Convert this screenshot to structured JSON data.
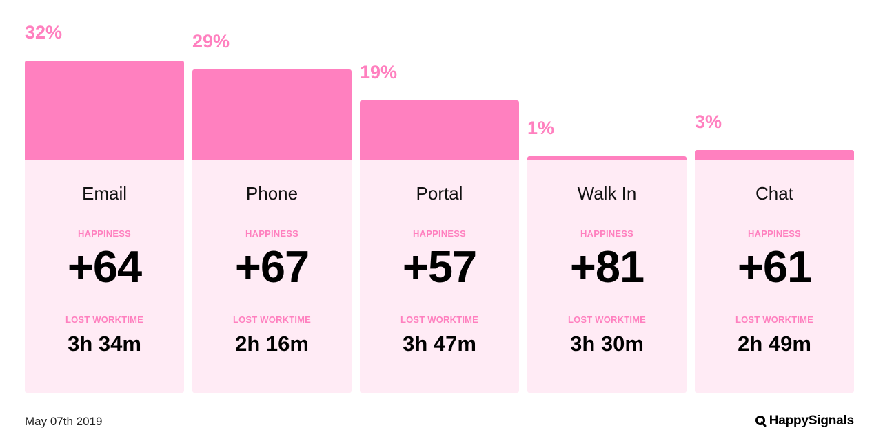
{
  "chart_data": {
    "type": "bar",
    "categories": [
      "Email",
      "Phone",
      "Portal",
      "Walk In",
      "Chat"
    ],
    "values": [
      32,
      29,
      19,
      1,
      3
    ],
    "value_labels": [
      "32%",
      "29%",
      "19%",
      "1%",
      "3%"
    ],
    "happiness_label": "HAPPINESS",
    "happiness": [
      "+64",
      "+67",
      "+57",
      "+81",
      "+61"
    ],
    "lost_label": "LOST WORKTIME",
    "lost_worktime": [
      "3h 34m",
      "2h 16m",
      "3h 47m",
      "3h 30m",
      "2h 49m"
    ],
    "ylim": [
      0,
      32
    ],
    "colors": {
      "bar": "#ff80bf",
      "card": "#ffebf5",
      "label": "#ff80bf"
    }
  },
  "footer": {
    "date": "May 07th 2019",
    "brand": "HappySignals",
    "brand_icon": "happysignals-logo-icon"
  }
}
